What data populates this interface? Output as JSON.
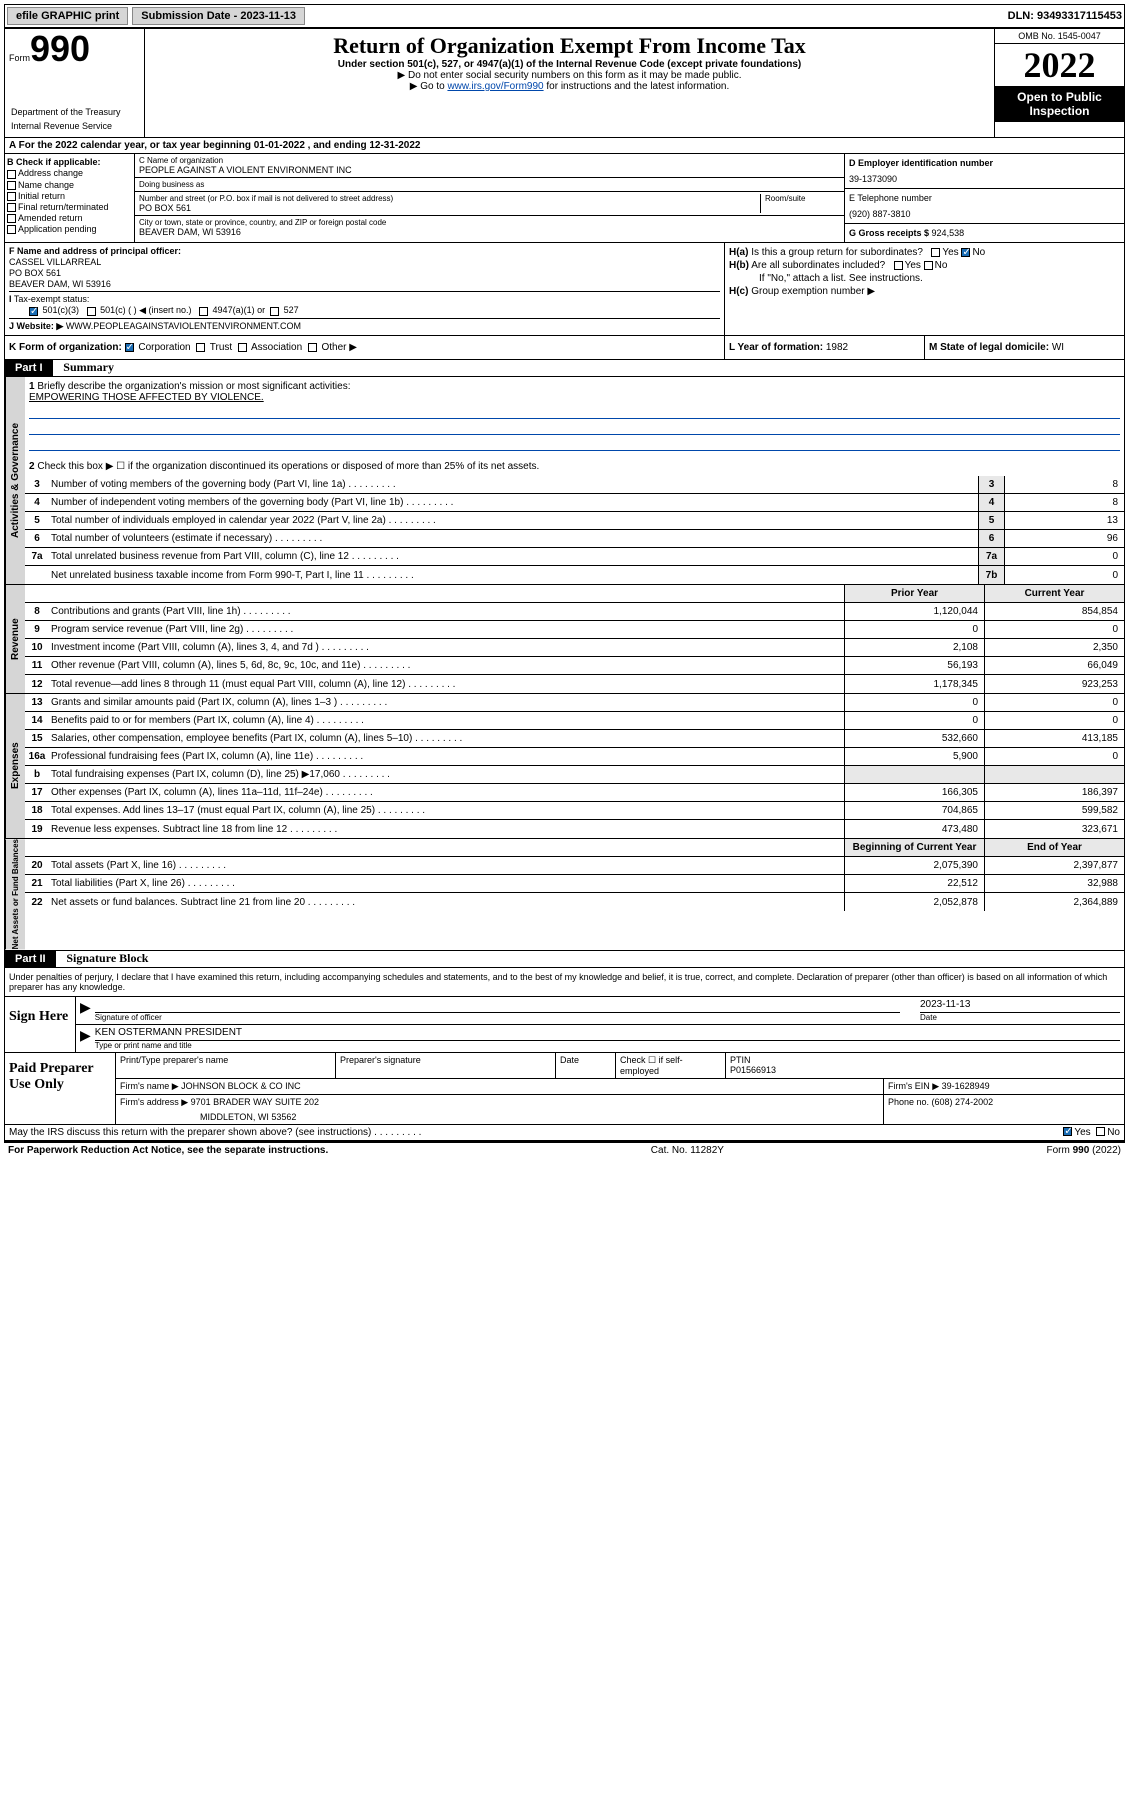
{
  "topbar": {
    "efile": "efile GRAPHIC print",
    "subdate_lbl": "Submission Date - ",
    "subdate": "2023-11-13",
    "dln_lbl": "DLN: ",
    "dln": "93493317115453"
  },
  "header": {
    "form_prefix": "Form",
    "form_number": "990",
    "title": "Return of Organization Exempt From Income Tax",
    "subtitle": "Under section 501(c), 527, or 4947(a)(1) of the Internal Revenue Code (except private foundations)",
    "sub1": "▶ Do not enter social security numbers on this form as it may be made public.",
    "sub2_a": "▶ Go to ",
    "sub2_link": "www.irs.gov/Form990",
    "sub2_b": " for instructions and the latest information.",
    "omb": "OMB No. 1545-0047",
    "year": "2022",
    "open": "Open to Public Inspection",
    "dept": "Department of the Treasury",
    "irs": "Internal Revenue Service"
  },
  "rowA": {
    "prefix": "A For the 2022 calendar year, or tax year beginning ",
    "begin": "01-01-2022",
    "mid": "   , and ending ",
    "end": "12-31-2022"
  },
  "colB": {
    "lbl": "B Check if applicable:",
    "items": [
      "Address change",
      "Name change",
      "Initial return",
      "Final return/terminated",
      "Amended return",
      "Application pending"
    ]
  },
  "colC": {
    "name_lbl": "C Name of organization",
    "name": "PEOPLE AGAINST A VIOLENT ENVIRONMENT INC",
    "dba_lbl": "Doing business as",
    "dba": "",
    "addr_lbl": "Number and street (or P.O. box if mail is not delivered to street address)",
    "room_lbl": "Room/suite",
    "addr": "PO BOX 561",
    "city_lbl": "City or town, state or province, country, and ZIP or foreign postal code",
    "city": "BEAVER DAM, WI  53916"
  },
  "colDE": {
    "d_lbl": "D Employer identification number",
    "d_val": "39-1373090",
    "e_lbl": "E Telephone number",
    "e_val": "(920) 887-3810",
    "g_lbl": "G Gross receipts $ ",
    "g_val": "924,538"
  },
  "sectF": {
    "f_lbl": "F Name and address of principal officer:",
    "name": "CASSEL VILLARREAL",
    "addr": "PO BOX 561",
    "city": "BEAVER DAM, WI  53916",
    "i_lbl": "Tax-exempt status:",
    "i_501c3": "501(c)(3)",
    "i_501c": "501(c) (  ) ◀ (insert no.)",
    "i_4947": "4947(a)(1) or",
    "i_527": "527",
    "j_lbl": "Website: ▶",
    "j_val": "WWW.PEOPLEAGAINSTAVIOLENTENVIRONMENT.COM"
  },
  "sectH": {
    "ha": "Is this a group return for subordinates?",
    "hb": "Are all subordinates included?",
    "hb_note": "If \"No,\" attach a list. See instructions.",
    "hc": "Group exemption number ▶",
    "yes": "Yes",
    "no": "No"
  },
  "rowK": {
    "k_lbl": "K Form of organization:",
    "corp": "Corporation",
    "trust": "Trust",
    "assoc": "Association",
    "other": "Other ▶",
    "l_lbl": "L Year of formation: ",
    "l_val": "1982",
    "m_lbl": "M State of legal domicile: ",
    "m_val": "WI"
  },
  "part1": {
    "hdr": "Part I",
    "title": "Summary",
    "vtab1": "Activities & Governance",
    "vtab2": "Revenue",
    "vtab3": "Expenses",
    "vtab4": "Net Assets or Fund Balances",
    "l1_text": "Briefly describe the organization's mission or most significant activities:",
    "l1_val": "EMPOWERING THOSE AFFECTED BY VIOLENCE.",
    "l2_text": "Check this box ▶ ☐  if the organization discontinued its operations or disposed of more than 25% of its net assets.",
    "lines_gov": [
      {
        "n": "3",
        "t": "Number of voting members of the governing body (Part VI, line 1a)",
        "b": "3",
        "v": "8"
      },
      {
        "n": "4",
        "t": "Number of independent voting members of the governing body (Part VI, line 1b)",
        "b": "4",
        "v": "8"
      },
      {
        "n": "5",
        "t": "Total number of individuals employed in calendar year 2022 (Part V, line 2a)",
        "b": "5",
        "v": "13"
      },
      {
        "n": "6",
        "t": "Total number of volunteers (estimate if necessary)",
        "b": "6",
        "v": "96"
      },
      {
        "n": "7a",
        "t": "Total unrelated business revenue from Part VIII, column (C), line 12",
        "b": "7a",
        "v": "0"
      },
      {
        "n": "",
        "t": "Net unrelated business taxable income from Form 990-T, Part I, line 11",
        "b": "7b",
        "v": "0"
      }
    ],
    "prior_lbl": "Prior Year",
    "curr_lbl": "Current Year",
    "beg_lbl": "Beginning of Current Year",
    "end_lbl": "End of Year",
    "lines_rev": [
      {
        "n": "8",
        "t": "Contributions and grants (Part VIII, line 1h)",
        "p": "1,120,044",
        "c": "854,854"
      },
      {
        "n": "9",
        "t": "Program service revenue (Part VIII, line 2g)",
        "p": "0",
        "c": "0"
      },
      {
        "n": "10",
        "t": "Investment income (Part VIII, column (A), lines 3, 4, and 7d )",
        "p": "2,108",
        "c": "2,350"
      },
      {
        "n": "11",
        "t": "Other revenue (Part VIII, column (A), lines 5, 6d, 8c, 9c, 10c, and 11e)",
        "p": "56,193",
        "c": "66,049"
      },
      {
        "n": "12",
        "t": "Total revenue—add lines 8 through 11 (must equal Part VIII, column (A), line 12)",
        "p": "1,178,345",
        "c": "923,253"
      }
    ],
    "lines_exp": [
      {
        "n": "13",
        "t": "Grants and similar amounts paid (Part IX, column (A), lines 1–3 )",
        "p": "0",
        "c": "0"
      },
      {
        "n": "14",
        "t": "Benefits paid to or for members (Part IX, column (A), line 4)",
        "p": "0",
        "c": "0"
      },
      {
        "n": "15",
        "t": "Salaries, other compensation, employee benefits (Part IX, column (A), lines 5–10)",
        "p": "532,660",
        "c": "413,185"
      },
      {
        "n": "16a",
        "t": "Professional fundraising fees (Part IX, column (A), line 11e)",
        "p": "5,900",
        "c": "0"
      },
      {
        "n": "b",
        "t": "Total fundraising expenses (Part IX, column (D), line 25) ▶17,060",
        "p": "",
        "c": ""
      },
      {
        "n": "17",
        "t": "Other expenses (Part IX, column (A), lines 11a–11d, 11f–24e)",
        "p": "166,305",
        "c": "186,397"
      },
      {
        "n": "18",
        "t": "Total expenses. Add lines 13–17 (must equal Part IX, column (A), line 25)",
        "p": "704,865",
        "c": "599,582"
      },
      {
        "n": "19",
        "t": "Revenue less expenses. Subtract line 18 from line 12",
        "p": "473,480",
        "c": "323,671"
      }
    ],
    "lines_net": [
      {
        "n": "20",
        "t": "Total assets (Part X, line 16)",
        "p": "2,075,390",
        "c": "2,397,877"
      },
      {
        "n": "21",
        "t": "Total liabilities (Part X, line 26)",
        "p": "22,512",
        "c": "32,988"
      },
      {
        "n": "22",
        "t": "Net assets or fund balances. Subtract line 21 from line 20",
        "p": "2,052,878",
        "c": "2,364,889"
      }
    ]
  },
  "part2": {
    "hdr": "Part II",
    "title": "Signature Block",
    "decl": "Under penalties of perjury, I declare that I have examined this return, including accompanying schedules and statements, and to the best of my knowledge and belief, it is true, correct, and complete. Declaration of preparer (other than officer) is based on all information of which preparer has any knowledge.",
    "sign_here": "Sign Here",
    "sig_officer": "Signature of officer",
    "sig_date_lbl": "Date",
    "sig_date": "2023-11-13",
    "officer_name": "KEN OSTERMANN  PRESIDENT",
    "type_name": "Type or print name and title",
    "paid": "Paid Preparer Use Only",
    "prep_name_lbl": "Print/Type preparer's name",
    "prep_sig_lbl": "Preparer's signature",
    "date_lbl": "Date",
    "check_lbl": "Check ☐ if self-employed",
    "ptin_lbl": "PTIN",
    "ptin": "P01566913",
    "firm_name_lbl": "Firm's name    ▶ ",
    "firm_name": "JOHNSON BLOCK & CO INC",
    "firm_ein_lbl": "Firm's EIN ▶ ",
    "firm_ein": "39-1628949",
    "firm_addr_lbl": "Firm's address ▶ ",
    "firm_addr": "9701 BRADER WAY SUITE 202",
    "firm_city": "MIDDLETON, WI  53562",
    "phone_lbl": "Phone no. ",
    "phone": "(608) 274-2002",
    "may_irs": "May the IRS discuss this return with the preparer shown above? (see instructions)"
  },
  "footer": {
    "left": "For Paperwork Reduction Act Notice, see the separate instructions.",
    "mid": "Cat. No. 11282Y",
    "right": "Form 990 (2022)"
  }
}
